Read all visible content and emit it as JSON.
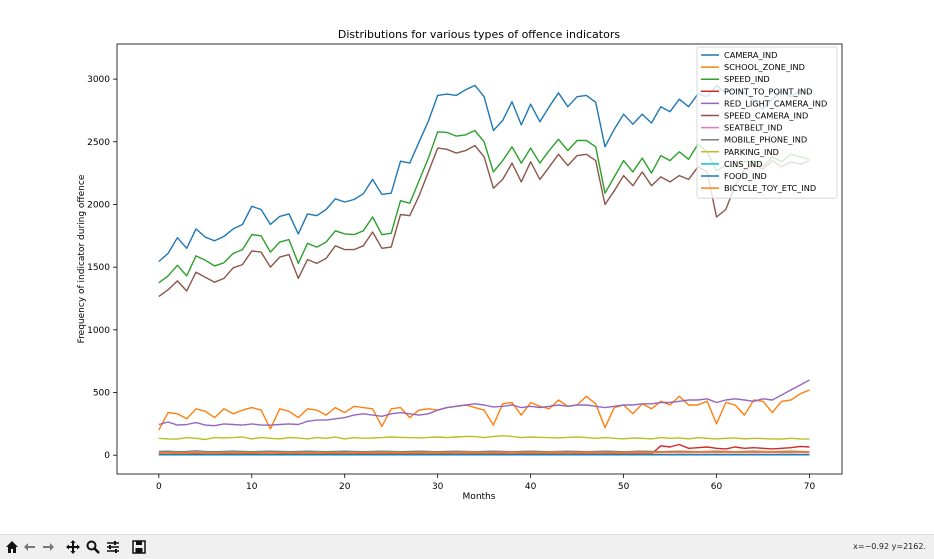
{
  "toolbar": {
    "buttons": [
      {
        "name": "home-icon"
      },
      {
        "name": "back-icon"
      },
      {
        "name": "forward-icon"
      },
      {
        "name": "pan-icon"
      },
      {
        "name": "zoom-icon"
      },
      {
        "name": "configure-subplots-icon"
      },
      {
        "name": "save-icon"
      }
    ],
    "coords": "x=−0.92 y=2162."
  },
  "chart_data": {
    "type": "line",
    "title": "Distributions for various types of offence indicators",
    "xlabel": "Months",
    "ylabel": "Frequency of indicator during offence",
    "xlim": [
      -4.5,
      73.5
    ],
    "ylim": [
      -150,
      3280
    ],
    "xticks": [
      0,
      10,
      20,
      30,
      40,
      50,
      60,
      70
    ],
    "yticks": [
      0,
      500,
      1000,
      1500,
      2000,
      2500,
      3000
    ],
    "legend_position": "upper right",
    "grid": false,
    "x": [
      0,
      1,
      2,
      3,
      4,
      5,
      6,
      7,
      8,
      9,
      10,
      11,
      12,
      13,
      14,
      15,
      16,
      17,
      18,
      19,
      20,
      21,
      22,
      23,
      24,
      25,
      26,
      27,
      28,
      29,
      30,
      31,
      32,
      33,
      34,
      35,
      36,
      37,
      38,
      39,
      40,
      41,
      42,
      43,
      44,
      45,
      46,
      47,
      48,
      49,
      50,
      51,
      52,
      53,
      54,
      55,
      56,
      57,
      58,
      59,
      60,
      61,
      62,
      63,
      64,
      65,
      66,
      67,
      68,
      69,
      70
    ],
    "series": [
      {
        "name": "CAMERA_IND",
        "color": "#1f77b4",
        "values": [
          1545,
          1610,
          1735,
          1650,
          1805,
          1740,
          1710,
          1745,
          1805,
          1840,
          1985,
          1960,
          1840,
          1905,
          1925,
          1765,
          1925,
          1910,
          1960,
          2045,
          2020,
          2040,
          2085,
          2200,
          2080,
          2090,
          2345,
          2330,
          2500,
          2665,
          2870,
          2880,
          2870,
          2915,
          2950,
          2860,
          2590,
          2670,
          2820,
          2635,
          2800,
          2660,
          2780,
          2890,
          2780,
          2860,
          2870,
          2815,
          2460,
          2600,
          2720,
          2640,
          2720,
          2650,
          2780,
          2740,
          2840,
          2780,
          2880,
          2860,
          2950,
          2890,
          2920,
          2890,
          2830,
          2760,
          2840,
          2900,
          2860,
          2910,
          2890
        ]
      },
      {
        "name": "SCHOOL_ZONE_IND",
        "color": "#ff7f0e",
        "values": [
          200,
          340,
          330,
          290,
          370,
          350,
          300,
          370,
          330,
          360,
          380,
          360,
          210,
          370,
          350,
          300,
          370,
          360,
          320,
          380,
          340,
          390,
          380,
          370,
          230,
          370,
          380,
          300,
          360,
          370,
          360,
          380,
          390,
          400,
          380,
          360,
          240,
          410,
          420,
          320,
          420,
          390,
          370,
          440,
          390,
          400,
          470,
          410,
          220,
          380,
          400,
          330,
          410,
          370,
          430,
          400,
          470,
          400,
          400,
          430,
          250,
          420,
          400,
          320,
          440,
          430,
          340,
          430,
          440,
          490,
          520
        ]
      },
      {
        "name": "SPEED_IND",
        "color": "#2ca02c",
        "values": [
          1375,
          1430,
          1515,
          1430,
          1590,
          1555,
          1510,
          1535,
          1610,
          1640,
          1760,
          1750,
          1620,
          1700,
          1720,
          1530,
          1690,
          1660,
          1700,
          1790,
          1765,
          1760,
          1790,
          1900,
          1760,
          1770,
          2030,
          2010,
          2190,
          2370,
          2580,
          2575,
          2545,
          2555,
          2590,
          2500,
          2260,
          2350,
          2460,
          2330,
          2450,
          2330,
          2430,
          2520,
          2430,
          2510,
          2510,
          2460,
          2090,
          2220,
          2350,
          2260,
          2370,
          2250,
          2390,
          2350,
          2420,
          2360,
          2480,
          2420,
          2270,
          2310,
          2300,
          2340,
          2350,
          2300,
          2380,
          2340,
          2400,
          2380,
          2360
        ]
      },
      {
        "name": "POINT_TO_POINT_IND",
        "color": "#d62728",
        "values": [
          10,
          10,
          10,
          10,
          10,
          10,
          10,
          10,
          10,
          10,
          10,
          10,
          10,
          10,
          10,
          10,
          10,
          10,
          10,
          10,
          10,
          10,
          10,
          10,
          10,
          10,
          10,
          10,
          10,
          10,
          10,
          10,
          10,
          10,
          10,
          10,
          10,
          10,
          10,
          10,
          10,
          10,
          10,
          10,
          10,
          10,
          10,
          10,
          10,
          10,
          10,
          10,
          10,
          10,
          75,
          65,
          85,
          55,
          60,
          65,
          55,
          50,
          65,
          55,
          60,
          55,
          50,
          55,
          60,
          70,
          65
        ]
      },
      {
        "name": "RED_LIGHT_CAMERA_IND",
        "color": "#9467bd",
        "values": [
          245,
          265,
          240,
          245,
          260,
          240,
          235,
          250,
          245,
          240,
          250,
          240,
          240,
          245,
          250,
          245,
          270,
          280,
          280,
          290,
          300,
          320,
          330,
          320,
          310,
          330,
          340,
          330,
          320,
          330,
          360,
          380,
          390,
          400,
          410,
          400,
          385,
          390,
          400,
          380,
          390,
          380,
          390,
          400,
          390,
          400,
          400,
          390,
          380,
          390,
          400,
          400,
          410,
          410,
          420,
          420,
          430,
          440,
          440,
          450,
          420,
          440,
          450,
          440,
          430,
          450,
          440,
          480,
          520,
          560,
          600
        ]
      },
      {
        "name": "SPEED_CAMERA_IND",
        "color": "#8c564b",
        "values": [
          1265,
          1320,
          1390,
          1310,
          1460,
          1420,
          1380,
          1410,
          1495,
          1520,
          1630,
          1620,
          1500,
          1580,
          1600,
          1410,
          1560,
          1530,
          1570,
          1670,
          1640,
          1640,
          1670,
          1780,
          1650,
          1660,
          1920,
          1910,
          2070,
          2260,
          2450,
          2440,
          2410,
          2430,
          2470,
          2380,
          2130,
          2200,
          2330,
          2180,
          2340,
          2200,
          2300,
          2400,
          2310,
          2390,
          2400,
          2350,
          2000,
          2110,
          2230,
          2150,
          2260,
          2150,
          2220,
          2180,
          2230,
          2200,
          2300,
          2260,
          1900,
          1960,
          2150,
          2280,
          2320,
          2280,
          2350,
          2300,
          2340,
          2320,
          2350
        ]
      },
      {
        "name": "SEATBELT_IND",
        "color": "#e377c2",
        "values": [
          20,
          22,
          21,
          20,
          23,
          22,
          20,
          21,
          22,
          21,
          20,
          22,
          21,
          22,
          20,
          21,
          22,
          20,
          21,
          22,
          21,
          20,
          22,
          21,
          20,
          22,
          21,
          20,
          21,
          22,
          20,
          21,
          22,
          21,
          20,
          22,
          21,
          20,
          21,
          22,
          20,
          21,
          22,
          21,
          20,
          22,
          21,
          20,
          21,
          22,
          20,
          21,
          22,
          21,
          20,
          22,
          21,
          20,
          21,
          22,
          20,
          21,
          22,
          21,
          20,
          22,
          21,
          20,
          21,
          22,
          20
        ]
      },
      {
        "name": "MOBILE_PHONE_IND",
        "color": "#7f7f7f",
        "values": [
          30,
          32,
          28,
          30,
          35,
          30,
          28,
          30,
          33,
          30,
          28,
          30,
          32,
          30,
          28,
          30,
          32,
          30,
          28,
          30,
          32,
          30,
          28,
          30,
          32,
          30,
          28,
          30,
          32,
          30,
          28,
          30,
          32,
          30,
          28,
          30,
          32,
          30,
          28,
          30,
          32,
          30,
          28,
          30,
          32,
          30,
          28,
          30,
          32,
          30,
          28,
          30,
          32,
          30,
          28,
          30,
          32,
          30,
          28,
          30,
          32,
          30,
          28,
          30,
          32,
          30,
          28,
          30,
          32,
          30,
          28
        ]
      },
      {
        "name": "PARKING_IND",
        "color": "#bcbd22",
        "values": [
          135,
          130,
          128,
          140,
          135,
          125,
          140,
          138,
          140,
          145,
          130,
          140,
          135,
          130,
          140,
          138,
          130,
          140,
          135,
          145,
          130,
          140,
          135,
          138,
          140,
          145,
          142,
          140,
          138,
          142,
          145,
          140,
          145,
          150,
          148,
          140,
          150,
          155,
          150,
          140,
          145,
          142,
          140,
          138,
          142,
          145,
          140,
          135,
          140,
          135,
          130,
          138,
          135,
          130,
          140,
          135,
          138,
          130,
          140,
          135,
          130,
          135,
          138,
          130,
          135,
          132,
          130,
          128,
          135,
          130,
          128
        ]
      },
      {
        "name": "CINS_IND",
        "color": "#17becf",
        "values": [
          5,
          5,
          6,
          5,
          5,
          6,
          5,
          5,
          6,
          5,
          5,
          6,
          5,
          5,
          6,
          5,
          5,
          6,
          5,
          5,
          6,
          5,
          5,
          6,
          5,
          5,
          6,
          5,
          5,
          6,
          5,
          5,
          6,
          5,
          5,
          6,
          5,
          5,
          6,
          5,
          5,
          6,
          5,
          5,
          6,
          5,
          5,
          6,
          5,
          5,
          6,
          5,
          5,
          6,
          5,
          5,
          6,
          5,
          5,
          6,
          5,
          5,
          6,
          5,
          5,
          6,
          5,
          5,
          6,
          5,
          5
        ]
      },
      {
        "name": "FOOD_IND",
        "color": "#1f77b4",
        "values": [
          3,
          3,
          3,
          3,
          3,
          3,
          3,
          3,
          3,
          3,
          3,
          3,
          3,
          3,
          3,
          3,
          3,
          3,
          3,
          3,
          3,
          3,
          3,
          3,
          3,
          3,
          3,
          3,
          3,
          3,
          3,
          3,
          3,
          3,
          3,
          3,
          3,
          3,
          3,
          3,
          3,
          3,
          3,
          3,
          3,
          3,
          3,
          3,
          3,
          3,
          3,
          3,
          3,
          3,
          3,
          3,
          3,
          3,
          3,
          3,
          3,
          3,
          3,
          3,
          3,
          3,
          3,
          3,
          3,
          3,
          3
        ]
      },
      {
        "name": "BICYCLE_TOY_ETC_IND",
        "color": "#ff7f0e",
        "values": [
          15,
          16,
          18,
          17,
          20,
          18,
          16,
          18,
          20,
          19,
          18,
          17,
          16,
          18,
          20,
          18,
          17,
          19,
          18,
          20,
          19,
          18,
          20,
          22,
          18,
          20,
          21,
          19,
          20,
          22,
          21,
          20,
          22,
          24,
          22,
          20,
          21,
          22,
          23,
          21,
          22,
          20,
          22,
          24,
          22,
          21,
          22,
          23,
          21,
          20,
          22,
          24,
          23,
          22,
          25,
          24,
          26,
          24,
          25,
          27,
          24,
          25,
          26,
          24,
          25,
          27,
          26,
          25,
          27,
          26,
          25
        ]
      }
    ]
  }
}
